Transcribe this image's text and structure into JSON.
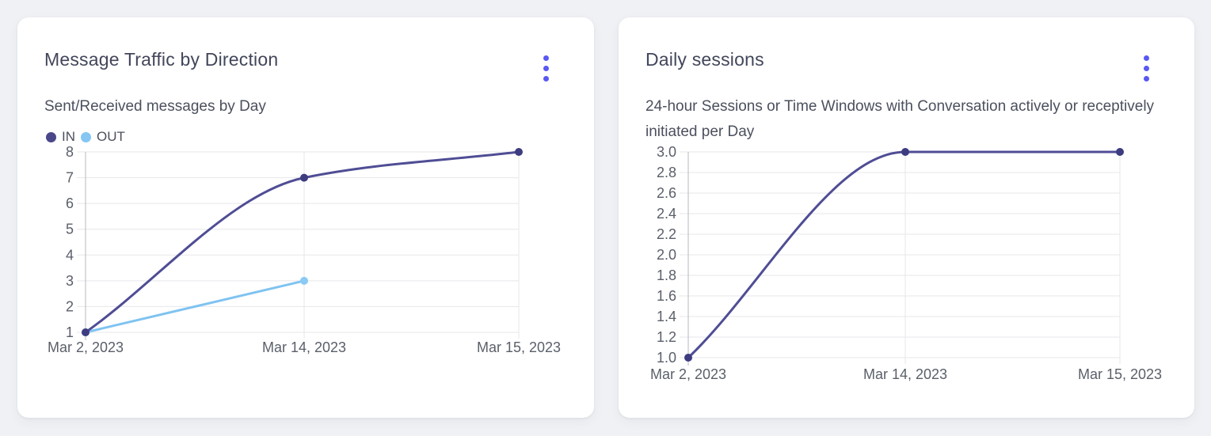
{
  "page": {
    "background": "#f0f1f4"
  },
  "colors": {
    "accent": "#5a58f2",
    "card_bg": "#ffffff",
    "title_text": "#42465a",
    "subtitle_text": "#4b505e",
    "tick_text": "#5a5f69",
    "grid": "#e7e7eb",
    "axis": "#b9b9c1"
  },
  "cards": [
    {
      "title": "Message Traffic by Direction",
      "subtitle": "Sent/Received messages by Day",
      "menu_icon": "kebab-menu",
      "legend": [
        {
          "label": "IN",
          "color": "#4a4889"
        },
        {
          "label": "OUT",
          "color": "#85c6f2"
        }
      ],
      "chart_data": {
        "type": "line",
        "title": "Message Traffic by Direction",
        "subtitle": "Sent/Received messages by Day",
        "x": [
          "Mar 2, 2023",
          "Mar 14, 2023",
          "Mar 15, 2023"
        ],
        "series": [
          {
            "name": "IN",
            "values": [
              1,
              7,
              8
            ],
            "line_color": "#4f4d94",
            "point_color": "#3e3c80"
          },
          {
            "name": "OUT",
            "values": [
              1,
              3,
              null
            ],
            "line_color": "#7fc3f1",
            "point_color": "#8acaf4"
          }
        ],
        "ylim": [
          1,
          8
        ],
        "yticks": [
          1,
          2,
          3,
          4,
          5,
          6,
          7,
          8
        ],
        "ytick_labels": [
          "1",
          "2",
          "3",
          "4",
          "5",
          "6",
          "7",
          "8"
        ],
        "grid": true,
        "legend_position": "top-left",
        "curve": "monotone"
      }
    },
    {
      "title": "Daily sessions",
      "subtitle": "24-hour Sessions or Time Windows with Conversation actively or receptively initiated per Day",
      "menu_icon": "kebab-menu",
      "chart_data": {
        "type": "line",
        "title": "Daily sessions",
        "subtitle": "24-hour Sessions or Time Windows with Conversation actively or receptively initiated per Day",
        "x": [
          "Mar 2, 2023",
          "Mar 14, 2023",
          "Mar 15, 2023"
        ],
        "series": [
          {
            "name": "Daily sessions",
            "values": [
              1.0,
              3.0,
              3.0
            ],
            "line_color": "#4f4d94",
            "point_color": "#3e3c80"
          }
        ],
        "ylim": [
          1.0,
          3.0
        ],
        "yticks": [
          1.0,
          1.2,
          1.4,
          1.6,
          1.8,
          2.0,
          2.2,
          2.4,
          2.6,
          2.8,
          3.0
        ],
        "ytick_labels": [
          "1.0",
          "1.2",
          "1.4",
          "1.6",
          "1.8",
          "2.0",
          "2.2",
          "2.4",
          "2.6",
          "2.8",
          "3.0"
        ],
        "grid": true,
        "legend_position": "none",
        "curve": "monotone"
      }
    }
  ]
}
